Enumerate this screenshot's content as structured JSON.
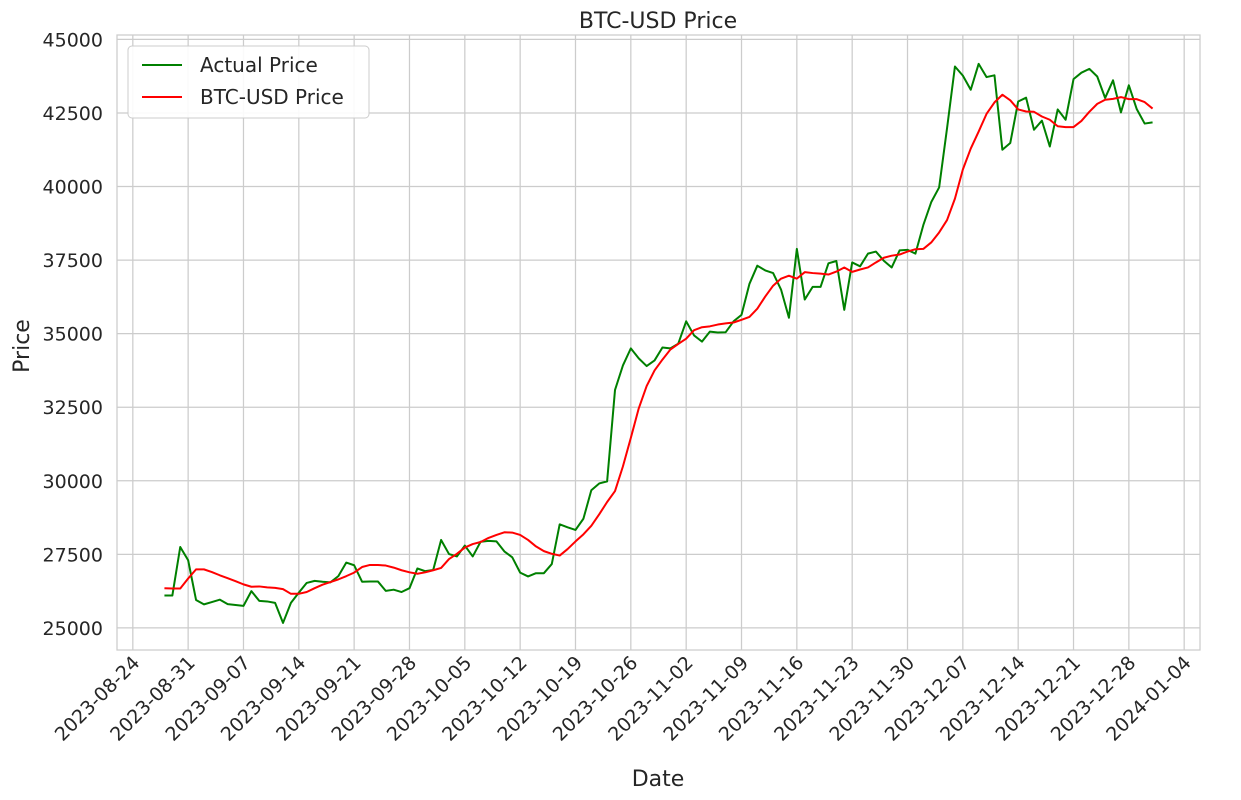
{
  "chart_data": {
    "type": "line",
    "title": "BTC-USD Price",
    "xlabel": "Date",
    "ylabel": "Price",
    "xlim": [
      "2023-08-22",
      "2024-01-06"
    ],
    "ylim": [
      24250,
      45150
    ],
    "grid": true,
    "legend_position": "top-left",
    "x_ticks": [
      "2023-08-24",
      "2023-08-31",
      "2023-09-07",
      "2023-09-14",
      "2023-09-21",
      "2023-09-28",
      "2023-10-05",
      "2023-10-12",
      "2023-10-19",
      "2023-10-26",
      "2023-11-02",
      "2023-11-09",
      "2023-11-16",
      "2023-11-23",
      "2023-11-30",
      "2023-12-07",
      "2023-12-14",
      "2023-12-21",
      "2023-12-28",
      "2024-01-04"
    ],
    "y_ticks": [
      25000,
      27500,
      30000,
      32500,
      35000,
      37500,
      40000,
      42500,
      45000
    ],
    "series": [
      {
        "name": "Actual Price",
        "color": "#008000",
        "points": [
          [
            "2023-08-28",
            26100
          ],
          [
            "2023-08-29",
            26100
          ],
          [
            "2023-08-30",
            27750
          ],
          [
            "2023-08-31",
            27300
          ],
          [
            "2023-09-01",
            25950
          ],
          [
            "2023-09-02",
            25800
          ],
          [
            "2023-09-03",
            25880
          ],
          [
            "2023-09-04",
            25960
          ],
          [
            "2023-09-05",
            25810
          ],
          [
            "2023-09-06",
            25780
          ],
          [
            "2023-09-07",
            25750
          ],
          [
            "2023-09-08",
            26250
          ],
          [
            "2023-09-09",
            25920
          ],
          [
            "2023-09-10",
            25900
          ],
          [
            "2023-09-11",
            25850
          ],
          [
            "2023-09-12",
            25170
          ],
          [
            "2023-09-13",
            25850
          ],
          [
            "2023-09-14",
            26200
          ],
          [
            "2023-09-15",
            26530
          ],
          [
            "2023-09-16",
            26600
          ],
          [
            "2023-09-17",
            26570
          ],
          [
            "2023-09-18",
            26550
          ],
          [
            "2023-09-19",
            26760
          ],
          [
            "2023-09-20",
            27220
          ],
          [
            "2023-09-21",
            27130
          ],
          [
            "2023-09-22",
            26570
          ],
          [
            "2023-09-23",
            26580
          ],
          [
            "2023-09-24",
            26580
          ],
          [
            "2023-09-25",
            26260
          ],
          [
            "2023-09-26",
            26300
          ],
          [
            "2023-09-27",
            26220
          ],
          [
            "2023-09-28",
            26350
          ],
          [
            "2023-09-29",
            27020
          ],
          [
            "2023-09-30",
            26930
          ],
          [
            "2023-10-01",
            26970
          ],
          [
            "2023-10-02",
            27990
          ],
          [
            "2023-10-03",
            27510
          ],
          [
            "2023-10-04",
            27430
          ],
          [
            "2023-10-05",
            27800
          ],
          [
            "2023-10-06",
            27430
          ],
          [
            "2023-10-07",
            27930
          ],
          [
            "2023-10-08",
            27960
          ],
          [
            "2023-10-09",
            27940
          ],
          [
            "2023-10-10",
            27600
          ],
          [
            "2023-10-11",
            27400
          ],
          [
            "2023-10-12",
            26880
          ],
          [
            "2023-10-13",
            26750
          ],
          [
            "2023-10-14",
            26860
          ],
          [
            "2023-10-15",
            26860
          ],
          [
            "2023-10-16",
            27170
          ],
          [
            "2023-10-17",
            28520
          ],
          [
            "2023-10-18",
            28420
          ],
          [
            "2023-10-19",
            28330
          ],
          [
            "2023-10-20",
            28710
          ],
          [
            "2023-10-21",
            29680
          ],
          [
            "2023-10-22",
            29910
          ],
          [
            "2023-10-23",
            29980
          ],
          [
            "2023-10-24",
            33090
          ],
          [
            "2023-10-25",
            33920
          ],
          [
            "2023-10-26",
            34500
          ],
          [
            "2023-10-27",
            34160
          ],
          [
            "2023-10-28",
            33900
          ],
          [
            "2023-10-29",
            34090
          ],
          [
            "2023-10-30",
            34530
          ],
          [
            "2023-10-31",
            34500
          ],
          [
            "2023-11-01",
            34660
          ],
          [
            "2023-11-02",
            35420
          ],
          [
            "2023-11-03",
            34940
          ],
          [
            "2023-11-04",
            34730
          ],
          [
            "2023-11-05",
            35070
          ],
          [
            "2023-11-06",
            35040
          ],
          [
            "2023-11-07",
            35050
          ],
          [
            "2023-11-08",
            35420
          ],
          [
            "2023-11-09",
            35640
          ],
          [
            "2023-11-10",
            36690
          ],
          [
            "2023-11-11",
            37310
          ],
          [
            "2023-11-12",
            37150
          ],
          [
            "2023-11-13",
            37060
          ],
          [
            "2023-11-14",
            36500
          ],
          [
            "2023-11-15",
            35540
          ],
          [
            "2023-11-16",
            37880
          ],
          [
            "2023-11-17",
            36160
          ],
          [
            "2023-11-18",
            36590
          ],
          [
            "2023-11-19",
            36590
          ],
          [
            "2023-11-20",
            37390
          ],
          [
            "2023-11-21",
            37470
          ],
          [
            "2023-11-22",
            35810
          ],
          [
            "2023-11-23",
            37420
          ],
          [
            "2023-11-24",
            37290
          ],
          [
            "2023-11-25",
            37720
          ],
          [
            "2023-11-26",
            37790
          ],
          [
            "2023-11-27",
            37480
          ],
          [
            "2023-11-28",
            37250
          ],
          [
            "2023-11-29",
            37830
          ],
          [
            "2023-11-30",
            37850
          ],
          [
            "2023-12-01",
            37720
          ],
          [
            "2023-12-02",
            38690
          ],
          [
            "2023-12-03",
            39470
          ],
          [
            "2023-12-04",
            39970
          ],
          [
            "2023-12-05",
            41980
          ],
          [
            "2023-12-06",
            44080
          ],
          [
            "2023-12-07",
            43770
          ],
          [
            "2023-12-08",
            43290
          ],
          [
            "2023-12-09",
            44170
          ],
          [
            "2023-12-10",
            43720
          ],
          [
            "2023-12-11",
            43780
          ],
          [
            "2023-12-12",
            41250
          ],
          [
            "2023-12-13",
            41480
          ],
          [
            "2023-12-14",
            42890
          ],
          [
            "2023-12-15",
            43020
          ],
          [
            "2023-12-16",
            41930
          ],
          [
            "2023-12-17",
            42240
          ],
          [
            "2023-12-18",
            41360
          ],
          [
            "2023-12-19",
            42620
          ],
          [
            "2023-12-20",
            42270
          ],
          [
            "2023-12-21",
            43650
          ],
          [
            "2023-12-22",
            43870
          ],
          [
            "2023-12-23",
            44000
          ],
          [
            "2023-12-24",
            43740
          ],
          [
            "2023-12-25",
            43010
          ],
          [
            "2023-12-26",
            43610
          ],
          [
            "2023-12-27",
            42520
          ],
          [
            "2023-12-28",
            43440
          ],
          [
            "2023-12-29",
            42630
          ],
          [
            "2023-12-30",
            42140
          ],
          [
            "2023-12-31",
            42180
          ]
        ]
      },
      {
        "name": "BTC-USD Price",
        "color": "#ff0000",
        "points": [
          [
            "2023-08-28",
            26350
          ],
          [
            "2023-08-29",
            26340
          ],
          [
            "2023-08-30",
            26340
          ],
          [
            "2023-08-31",
            26680
          ],
          [
            "2023-09-01",
            26990
          ],
          [
            "2023-09-02",
            26990
          ],
          [
            "2023-09-03",
            26900
          ],
          [
            "2023-09-04",
            26790
          ],
          [
            "2023-09-05",
            26690
          ],
          [
            "2023-09-06",
            26590
          ],
          [
            "2023-09-07",
            26480
          ],
          [
            "2023-09-08",
            26400
          ],
          [
            "2023-09-09",
            26410
          ],
          [
            "2023-09-10",
            26380
          ],
          [
            "2023-09-11",
            26360
          ],
          [
            "2023-09-12",
            26320
          ],
          [
            "2023-09-13",
            26160
          ],
          [
            "2023-09-14",
            26160
          ],
          [
            "2023-09-15",
            26220
          ],
          [
            "2023-09-16",
            26350
          ],
          [
            "2023-09-17",
            26470
          ],
          [
            "2023-09-18",
            26560
          ],
          [
            "2023-09-19",
            26650
          ],
          [
            "2023-09-20",
            26760
          ],
          [
            "2023-09-21",
            26880
          ],
          [
            "2023-09-22",
            27070
          ],
          [
            "2023-09-23",
            27140
          ],
          [
            "2023-09-24",
            27140
          ],
          [
            "2023-09-25",
            27120
          ],
          [
            "2023-09-26",
            27050
          ],
          [
            "2023-09-27",
            26960
          ],
          [
            "2023-09-28",
            26890
          ],
          [
            "2023-09-29",
            26840
          ],
          [
            "2023-09-30",
            26890
          ],
          [
            "2023-10-01",
            26960
          ],
          [
            "2023-10-02",
            27040
          ],
          [
            "2023-10-03",
            27340
          ],
          [
            "2023-10-04",
            27520
          ],
          [
            "2023-10-05",
            27730
          ],
          [
            "2023-10-06",
            27850
          ],
          [
            "2023-10-07",
            27920
          ],
          [
            "2023-10-08",
            28060
          ],
          [
            "2023-10-09",
            28160
          ],
          [
            "2023-10-10",
            28250
          ],
          [
            "2023-10-11",
            28240
          ],
          [
            "2023-10-12",
            28160
          ],
          [
            "2023-10-13",
            27990
          ],
          [
            "2023-10-14",
            27770
          ],
          [
            "2023-10-15",
            27610
          ],
          [
            "2023-10-16",
            27520
          ],
          [
            "2023-10-17",
            27460
          ],
          [
            "2023-10-18",
            27680
          ],
          [
            "2023-10-19",
            27940
          ],
          [
            "2023-10-20",
            28180
          ],
          [
            "2023-10-21",
            28470
          ],
          [
            "2023-10-22",
            28860
          ],
          [
            "2023-10-23",
            29280
          ],
          [
            "2023-10-24",
            29650
          ],
          [
            "2023-10-25",
            30490
          ],
          [
            "2023-10-26",
            31460
          ],
          [
            "2023-10-27",
            32460
          ],
          [
            "2023-10-28",
            33220
          ],
          [
            "2023-10-29",
            33750
          ],
          [
            "2023-10-30",
            34120
          ],
          [
            "2023-10-31",
            34460
          ],
          [
            "2023-11-01",
            34650
          ],
          [
            "2023-11-02",
            34830
          ],
          [
            "2023-11-03",
            35120
          ],
          [
            "2023-11-04",
            35220
          ],
          [
            "2023-11-05",
            35250
          ],
          [
            "2023-11-06",
            35310
          ],
          [
            "2023-11-07",
            35350
          ],
          [
            "2023-11-08",
            35380
          ],
          [
            "2023-11-09",
            35470
          ],
          [
            "2023-11-10",
            35570
          ],
          [
            "2023-11-11",
            35850
          ],
          [
            "2023-11-12",
            36260
          ],
          [
            "2023-11-13",
            36630
          ],
          [
            "2023-11-14",
            36870
          ],
          [
            "2023-11-15",
            36970
          ],
          [
            "2023-11-16",
            36870
          ],
          [
            "2023-11-17",
            37090
          ],
          [
            "2023-11-18",
            37060
          ],
          [
            "2023-11-19",
            37040
          ],
          [
            "2023-11-20",
            37010
          ],
          [
            "2023-11-21",
            37110
          ],
          [
            "2023-11-22",
            37250
          ],
          [
            "2023-11-23",
            37100
          ],
          [
            "2023-11-24",
            37180
          ],
          [
            "2023-11-25",
            37250
          ],
          [
            "2023-11-26",
            37420
          ],
          [
            "2023-11-27",
            37580
          ],
          [
            "2023-11-28",
            37650
          ],
          [
            "2023-11-29",
            37690
          ],
          [
            "2023-11-30",
            37790
          ],
          [
            "2023-12-01",
            37870
          ],
          [
            "2023-12-02",
            37880
          ],
          [
            "2023-12-03",
            38100
          ],
          [
            "2023-12-04",
            38440
          ],
          [
            "2023-12-05",
            38860
          ],
          [
            "2023-12-06",
            39590
          ],
          [
            "2023-12-07",
            40580
          ],
          [
            "2023-12-08",
            41290
          ],
          [
            "2023-12-09",
            41870
          ],
          [
            "2023-12-10",
            42470
          ],
          [
            "2023-12-11",
            42860
          ],
          [
            "2023-12-12",
            43120
          ],
          [
            "2023-12-13",
            42930
          ],
          [
            "2023-12-14",
            42620
          ],
          [
            "2023-12-15",
            42550
          ],
          [
            "2023-12-16",
            42540
          ],
          [
            "2023-12-17",
            42380
          ],
          [
            "2023-12-18",
            42270
          ],
          [
            "2023-12-19",
            42050
          ],
          [
            "2023-12-20",
            42020
          ],
          [
            "2023-12-21",
            42020
          ],
          [
            "2023-12-22",
            42230
          ],
          [
            "2023-12-23",
            42540
          ],
          [
            "2023-12-24",
            42810
          ],
          [
            "2023-12-25",
            42950
          ],
          [
            "2023-12-26",
            42980
          ],
          [
            "2023-12-27",
            43040
          ],
          [
            "2023-12-28",
            42970
          ],
          [
            "2023-12-29",
            42970
          ],
          [
            "2023-12-30",
            42870
          ],
          [
            "2023-12-31",
            42650
          ]
        ]
      }
    ]
  }
}
